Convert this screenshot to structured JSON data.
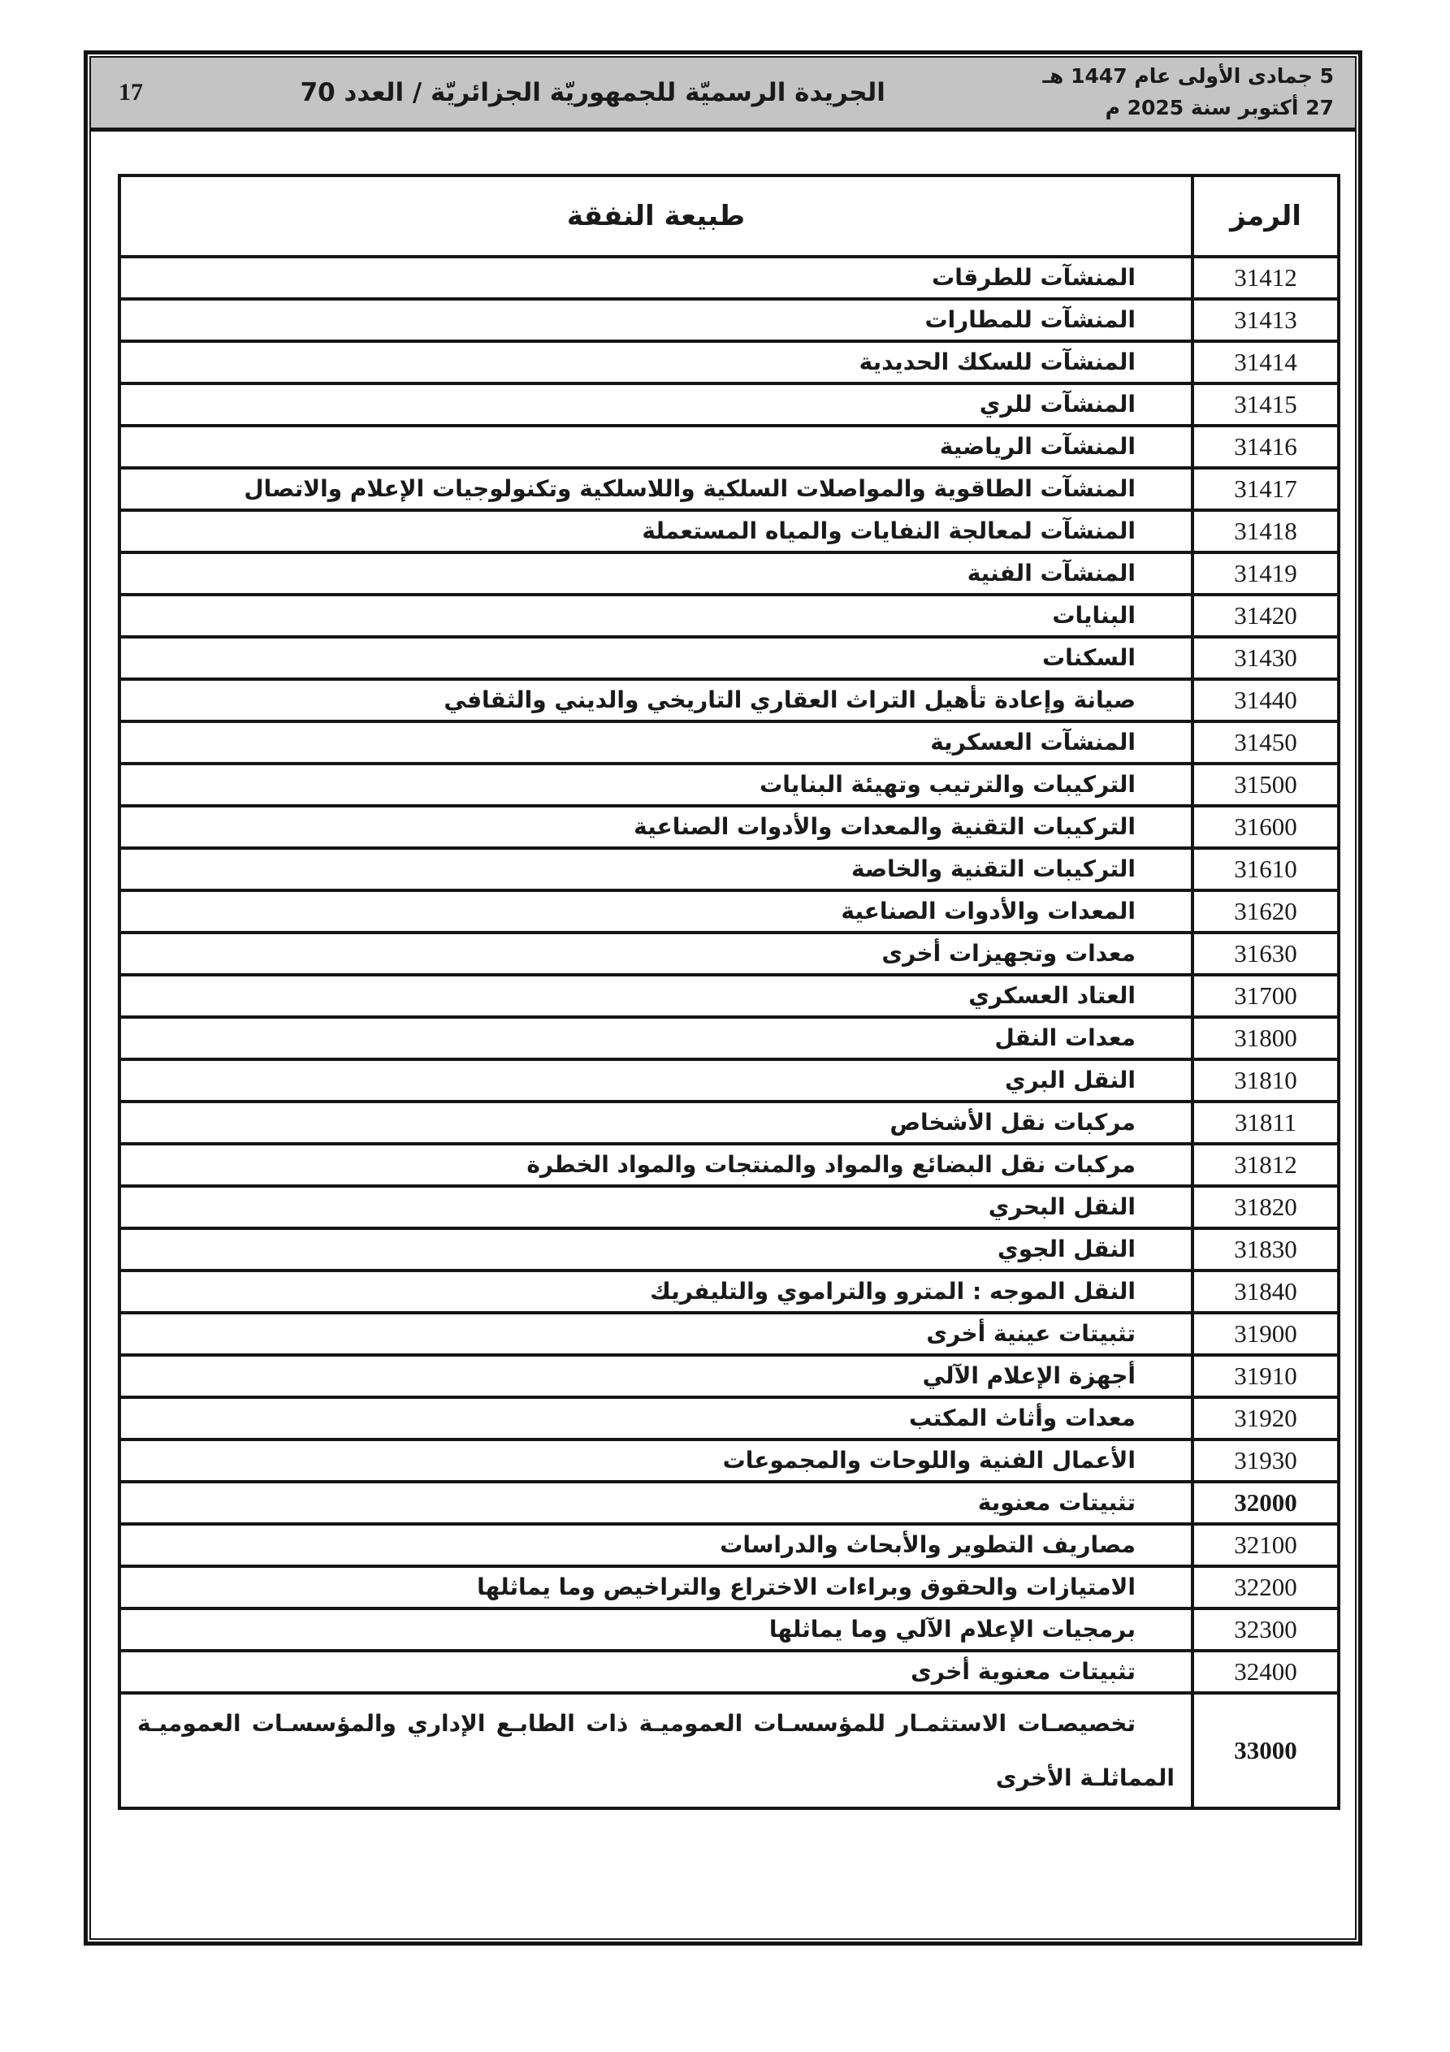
{
  "colors": {
    "band_bg": "#c4c4c4",
    "ink": "#1a1a1a",
    "border": "#151515"
  },
  "header": {
    "page_number": "17",
    "journal_title": "الجريدة الرسميّة للجمهوريّة الجزائريّة / العدد 70",
    "hijri_date": "5 جمادى الأولى عام 1447 هـ",
    "gregorian_date": "27 أكتوبر سنة 2025 م"
  },
  "table": {
    "col_nature": "طبيعة النفقة",
    "col_code": "الرمز",
    "rows": [
      {
        "code": "31412",
        "nature": "المنشآت للطرقات",
        "bold": false,
        "tall": false
      },
      {
        "code": "31413",
        "nature": "المنشآت للمطارات",
        "bold": false,
        "tall": false
      },
      {
        "code": "31414",
        "nature": "المنشآت للسكك الحديدية",
        "bold": false,
        "tall": false
      },
      {
        "code": "31415",
        "nature": "المنشآت للري",
        "bold": false,
        "tall": false
      },
      {
        "code": "31416",
        "nature": "المنشآت الرياضية",
        "bold": false,
        "tall": false
      },
      {
        "code": "31417",
        "nature": "المنشآت الطاقوية والمواصلات السلكية واللاسلكية وتكنولوجيات الإعلام والاتصال",
        "bold": false,
        "tall": false
      },
      {
        "code": "31418",
        "nature": "المنشآت لمعالجة النفايات والمياه المستعملة",
        "bold": false,
        "tall": false
      },
      {
        "code": "31419",
        "nature": "المنشآت الفنية",
        "bold": false,
        "tall": false
      },
      {
        "code": "31420",
        "nature": "البنايات",
        "bold": false,
        "tall": false
      },
      {
        "code": "31430",
        "nature": "السكنات",
        "bold": false,
        "tall": false
      },
      {
        "code": "31440",
        "nature": "صيانة وإعادة تأهيل التراث العقاري التاريخي والديني والثقافي",
        "bold": false,
        "tall": false
      },
      {
        "code": "31450",
        "nature": "المنشآت العسكرية",
        "bold": false,
        "tall": false
      },
      {
        "code": "31500",
        "nature": "التركيبات والترتيب وتهيئة البنايات",
        "bold": false,
        "tall": false
      },
      {
        "code": "31600",
        "nature": "التركيبات التقنية والمعدات والأدوات الصناعية",
        "bold": false,
        "tall": false
      },
      {
        "code": "31610",
        "nature": "التركيبات التقنية والخاصة",
        "bold": false,
        "tall": false
      },
      {
        "code": "31620",
        "nature": "المعدات والأدوات الصناعية",
        "bold": false,
        "tall": false
      },
      {
        "code": "31630",
        "nature": "معدات وتجهيزات أخرى",
        "bold": false,
        "tall": false
      },
      {
        "code": "31700",
        "nature": "العتاد العسكري",
        "bold": false,
        "tall": false
      },
      {
        "code": "31800",
        "nature": "معدات النقل",
        "bold": false,
        "tall": false
      },
      {
        "code": "31810",
        "nature": "النقل البري",
        "bold": false,
        "tall": false
      },
      {
        "code": "31811",
        "nature": "مركبات نقل الأشخاص",
        "bold": false,
        "tall": false
      },
      {
        "code": "31812",
        "nature": "مركبات نقل البضائع والمواد والمنتجات والمواد الخطرة",
        "bold": false,
        "tall": false
      },
      {
        "code": "31820",
        "nature": "النقل البحري",
        "bold": false,
        "tall": false
      },
      {
        "code": "31830",
        "nature": "النقل الجوي",
        "bold": false,
        "tall": false
      },
      {
        "code": "31840",
        "nature": "النقل الموجه : المترو والتراموي والتليفريك",
        "bold": false,
        "tall": false
      },
      {
        "code": "31900",
        "nature": "تثبيتات عينية أخرى",
        "bold": false,
        "tall": false
      },
      {
        "code": "31910",
        "nature": "أجهزة الإعلام الآلي",
        "bold": false,
        "tall": false
      },
      {
        "code": "31920",
        "nature": "معدات وأثاث المكتب",
        "bold": false,
        "tall": false
      },
      {
        "code": "31930",
        "nature": "الأعمال الفنية واللوحات والمجموعات",
        "bold": false,
        "tall": false
      },
      {
        "code": "32000",
        "nature": "تثبيتات معنوية",
        "bold": true,
        "tall": false
      },
      {
        "code": "32100",
        "nature": "مصاريف التطوير والأبحاث والدراسات",
        "bold": false,
        "tall": false
      },
      {
        "code": "32200",
        "nature": "الامتيازات والحقوق وبراءات الاختراع والتراخيص وما يماثلها",
        "bold": false,
        "tall": false
      },
      {
        "code": "32300",
        "nature": "برمجيات الإعلام الآلي وما يماثلها",
        "bold": false,
        "tall": false
      },
      {
        "code": "32400",
        "nature": "تثبيتات معنوية أخرى",
        "bold": false,
        "tall": false
      },
      {
        "code": "33000",
        "nature": "تخصيصـات الاستثمـار للمؤسسـات العموميـة ذات الطابـع الإداري والمؤسسـات العموميـة المماثلـة الأخرى",
        "bold": true,
        "tall": true
      }
    ]
  }
}
